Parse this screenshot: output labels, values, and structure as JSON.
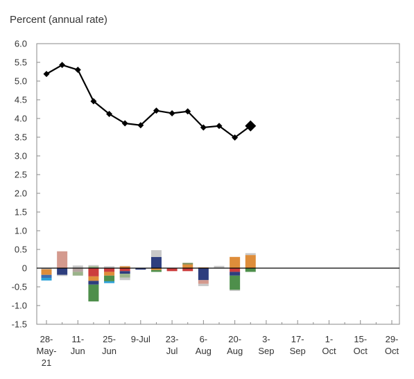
{
  "chart_data": {
    "type": "line",
    "ylabel": "Percent (annual rate)",
    "ylim": [
      -1.5,
      6.0
    ],
    "yticks": [
      "6.0",
      "5.5",
      "5.0",
      "4.5",
      "4.0",
      "3.5",
      "3.0",
      "2.5",
      "2.0",
      "1.5",
      "1.0",
      "0.5",
      "0",
      "-0.5",
      "-1.0",
      "-1.5"
    ],
    "xticks": [
      [
        "28-",
        "May-",
        "21"
      ],
      [
        "11-",
        "Jun"
      ],
      [
        "25-",
        "Jun"
      ],
      [
        "9-Jul"
      ],
      [
        "23-",
        "Jul"
      ],
      [
        "6-",
        "Aug"
      ],
      [
        "20-",
        "Aug"
      ],
      [
        "3-",
        "Sep"
      ],
      [
        "17-",
        "Sep"
      ],
      [
        "1-",
        "Oct"
      ],
      [
        "15-",
        "Oct"
      ],
      [
        "29-",
        "Oct"
      ]
    ],
    "nowcast": {
      "dates": [
        "2021-05-28",
        "2021-06-04",
        "2021-06-11",
        "2021-06-18",
        "2021-06-25",
        "2021-07-02",
        "2021-07-09",
        "2021-07-16",
        "2021-07-23",
        "2021-07-30",
        "2021-08-06",
        "2021-08-13",
        "2021-08-20",
        "2021-08-27"
      ],
      "values": [
        5.19,
        5.43,
        5.3,
        4.46,
        4.12,
        3.87,
        3.82,
        4.21,
        4.14,
        4.19,
        3.76,
        3.8,
        3.49,
        3.8
      ]
    },
    "components": [
      {
        "week": 0,
        "segments": [
          [
            -0.03,
            "#b9b9c3"
          ],
          [
            -0.15,
            "#de8d3a"
          ],
          [
            -0.08,
            "#3d6eb0"
          ],
          [
            -0.07,
            "#2ba0d8"
          ]
        ]
      },
      {
        "week": 1,
        "segments": [
          [
            0.45,
            "#d49a8e"
          ],
          [
            -0.18,
            "#2e3e7e"
          ],
          [
            -0.03,
            "#c8c8c8"
          ]
        ]
      },
      {
        "week": 2,
        "segments": [
          [
            0.07,
            "#c8c8c8"
          ],
          [
            -0.1,
            "#b5a4a0"
          ],
          [
            -0.1,
            "#9bb38a"
          ]
        ]
      },
      {
        "week": 3,
        "segments": [
          [
            0.05,
            "#9bb38a"
          ],
          [
            0.03,
            "#c8c8c8"
          ],
          [
            -0.22,
            "#cc3d3d"
          ],
          [
            -0.12,
            "#de8d3a"
          ],
          [
            -0.1,
            "#2e3e7e"
          ],
          [
            -0.45,
            "#4e8f4b"
          ]
        ]
      },
      {
        "week": 4,
        "segments": [
          [
            0.05,
            "#c8c8c8"
          ],
          [
            -0.1,
            "#cc3d3d"
          ],
          [
            -0.1,
            "#de8d3a"
          ],
          [
            -0.15,
            "#4e8f4b"
          ],
          [
            -0.05,
            "#2ba0d8"
          ]
        ]
      },
      {
        "week": 5,
        "segments": [
          [
            0.05,
            "#de8d3a"
          ],
          [
            0.01,
            "#c8c8c8"
          ],
          [
            -0.08,
            "#cc3d3d"
          ],
          [
            -0.07,
            "#2e3e7e"
          ],
          [
            -0.1,
            "#9bb38a"
          ],
          [
            -0.07,
            "#c8c8c8"
          ]
        ]
      },
      {
        "week": 6,
        "segments": [
          [
            -0.04,
            "#2e3e7e"
          ]
        ]
      },
      {
        "week": 7,
        "segments": [
          [
            0.3,
            "#2e3e7e"
          ],
          [
            0.18,
            "#c8c8c8"
          ],
          [
            -0.05,
            "#de8d3a"
          ],
          [
            -0.05,
            "#4e8f4b"
          ]
        ]
      },
      {
        "week": 8,
        "segments": [
          [
            -0.08,
            "#cc3d3d"
          ]
        ]
      },
      {
        "week": 9,
        "segments": [
          [
            0.1,
            "#de8d3a"
          ],
          [
            0.04,
            "#7a8a55"
          ],
          [
            -0.08,
            "#cc3d3d"
          ]
        ]
      },
      {
        "week": 10,
        "segments": [
          [
            0.02,
            "#de8d3a"
          ],
          [
            -0.32,
            "#2e3e7e"
          ],
          [
            -0.1,
            "#d49a8e"
          ],
          [
            -0.06,
            "#c8c8c8"
          ]
        ]
      },
      {
        "week": 11,
        "segments": [
          [
            0.06,
            "#c8c8c8"
          ]
        ]
      },
      {
        "week": 12,
        "segments": [
          [
            0.3,
            "#de8d3a"
          ],
          [
            -0.1,
            "#cc3d3d"
          ],
          [
            -0.1,
            "#2e3e7e"
          ],
          [
            -0.38,
            "#4e8f4b"
          ],
          [
            -0.03,
            "#c8c8c8"
          ]
        ]
      },
      {
        "week": 13,
        "segments": [
          [
            0.35,
            "#de8d3a"
          ],
          [
            0.05,
            "#c8c8c8"
          ],
          [
            -0.1,
            "#4e8f4b"
          ]
        ]
      }
    ]
  }
}
